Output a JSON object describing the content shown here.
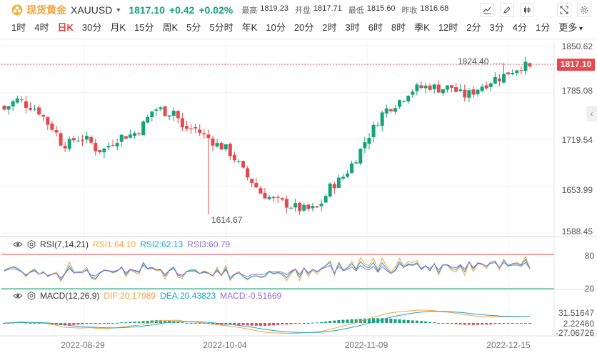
{
  "header": {
    "symbol_name": "现货黄金",
    "symbol_code": "XAUUSD",
    "last": "1817.10",
    "change": "+0.42",
    "change_pct": "+0.02%",
    "stats": [
      {
        "label": "最高",
        "value": "1819.23"
      },
      {
        "label": "开盘",
        "value": "1817.71"
      },
      {
        "label": "最低",
        "value": "1815.60"
      },
      {
        "label": "昨收",
        "value": "1816.68"
      }
    ],
    "up_color": "#15a37a",
    "down_color": "#e5484d"
  },
  "tabs": [
    "1时",
    "4时",
    "日K",
    "30分",
    "月K",
    "15分",
    "周K",
    "5分",
    "5分时",
    "年K",
    "10分",
    "20分",
    "2时",
    "3时",
    "6时",
    "8时",
    "季K",
    "12时",
    "2分",
    "3分",
    "4分",
    "1分",
    "更多"
  ],
  "active_tab": "日K",
  "price_axis": [
    "1850.62",
    "1785.08",
    "1719.54",
    "1653.99",
    "1588.45"
  ],
  "current_price_tag": "1817.10",
  "annotations": {
    "high": "1824.40",
    "low": "1614.67"
  },
  "rsi": {
    "title": "RSI(7,14,21)",
    "rsi1": "RSI1:64.10",
    "rsi2": "RSI2:62.13",
    "rsi3": "RSI3:60.79",
    "levels": [
      "80",
      "20"
    ]
  },
  "macd": {
    "title": "MACD(12,26,9)",
    "dif": "DIF:20.17989",
    "dea": "DEA:20.43823",
    "macd": "MACD:-0.51669",
    "axis": [
      "31.51647",
      "2.22460",
      "-27.06726"
    ]
  },
  "x_axis": [
    "2022-08-29",
    "2022-10-04",
    "2022-11-09",
    "2022-12-15"
  ],
  "chart_data": {
    "type": "candlestick",
    "ylim": [
      1588.45,
      1850.62
    ],
    "closes": [
      1760,
      1769,
      1774,
      1767,
      1764,
      1757,
      1742,
      1733,
      1714,
      1711,
      1720,
      1720,
      1716,
      1704,
      1704,
      1713,
      1721,
      1724,
      1725,
      1732,
      1745,
      1761,
      1760,
      1755,
      1760,
      1733,
      1734,
      1733,
      1724,
      1719,
      1711,
      1707,
      1698,
      1684,
      1668,
      1659,
      1645,
      1640,
      1633,
      1631,
      1628,
      1624,
      1621,
      1621,
      1622,
      1636,
      1654,
      1660,
      1670,
      1685,
      1701,
      1720,
      1734,
      1752,
      1762,
      1768,
      1775,
      1786,
      1789,
      1791,
      1793,
      1789,
      1790,
      1791,
      1782,
      1779,
      1785,
      1792,
      1797,
      1803,
      1805,
      1812,
      1817,
      1822,
      1817
    ]
  }
}
